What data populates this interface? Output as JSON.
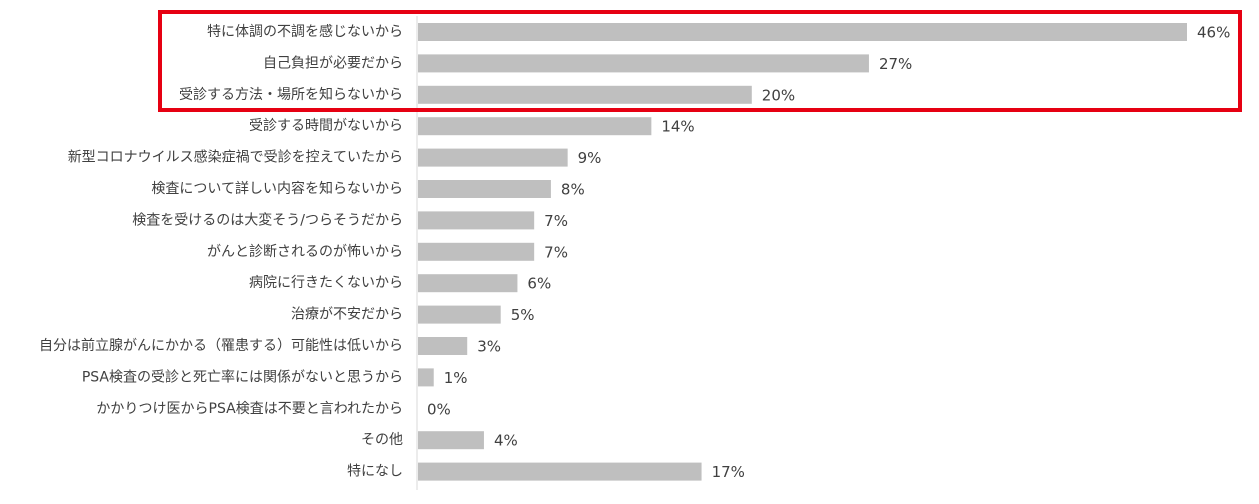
{
  "chart_data": {
    "type": "bar",
    "orientation": "horizontal",
    "categories": [
      "特に体調の不調を感じないから",
      "自己負担が必要だから",
      "受診する方法・場所を知らないから",
      "受診する時間がないから",
      "新型コロナウイルス感染症禍で受診を控えていたから",
      "検査について詳しい内容を知らないから",
      "検査を受けるのは大変そう/つらそうだから",
      "がんと診断されるのが怖いから",
      "病院に行きたくないから",
      "治療が不安だから",
      "自分は前立腺がんにかかる（罹患する）可能性は低いから",
      "PSA検査の受診と死亡率には関係がないと思うから",
      "かかりつけ医からPSA検査は不要と言われたから",
      "その他",
      "特になし"
    ],
    "values": [
      46,
      27,
      20,
      14,
      9,
      8,
      7,
      7,
      6,
      5,
      3,
      1,
      0,
      4,
      17
    ],
    "value_labels": [
      "46%",
      "27%",
      "20%",
      "14%",
      "9%",
      "8%",
      "7%",
      "7%",
      "6%",
      "5%",
      "3%",
      "1%",
      "0%",
      "4%",
      "17%"
    ],
    "color": "#bfbfbf"
  }
}
